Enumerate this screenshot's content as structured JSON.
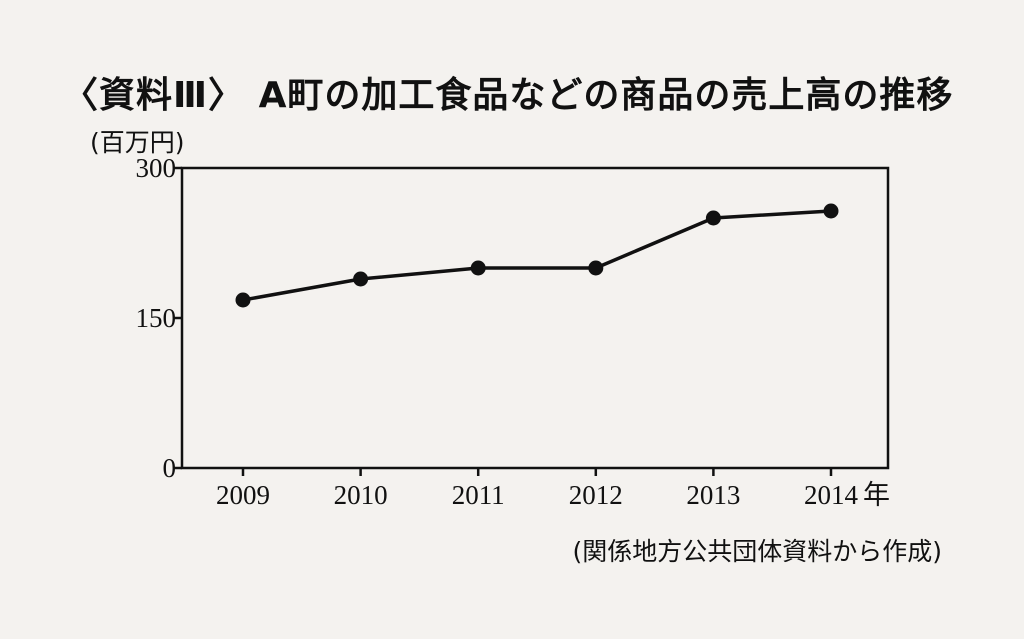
{
  "title": "〈資料Ⅲ〉 A町の加工食品などの商品の売上高の推移",
  "unit": "(百万円)",
  "source": "(関係地方公共団体資料から作成)",
  "x_suffix": "年",
  "chart_data": {
    "type": "line",
    "title": "〈資料Ⅲ〉 A町の加工食品などの商品の売上高の推移",
    "ylabel": "(百万円)",
    "xlabel": "",
    "x": [
      "2009",
      "2010",
      "2011",
      "2012",
      "2013",
      "2014"
    ],
    "series": [
      {
        "values": [
          168,
          189,
          200,
          200,
          250,
          257
        ]
      }
    ],
    "ylim": [
      0,
      300
    ],
    "yticks": [
      0,
      150,
      300
    ],
    "grid": false,
    "colors": {
      "line": "#111111",
      "marker": "#111111",
      "axis": "#111111"
    }
  }
}
